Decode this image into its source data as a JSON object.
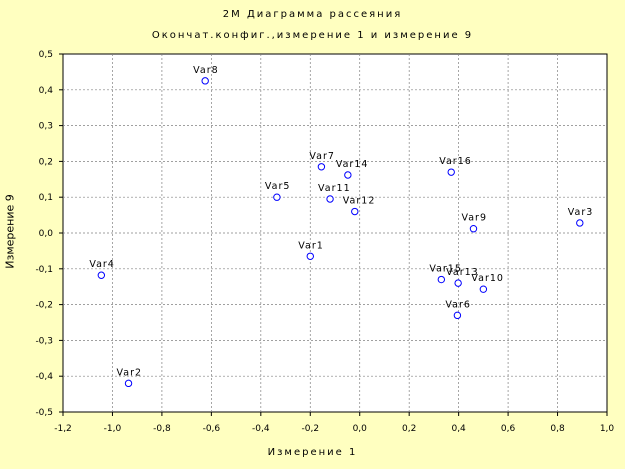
{
  "chart_data": {
    "type": "scatter",
    "title": "2М Диаграмма рассеяния",
    "subtitle": "Окончат.конфиг.,измерение  1 и измерение  9",
    "xlabel": "Измерение 1",
    "ylabel": "Измерение 9",
    "xlim": [
      -1.2,
      1.0
    ],
    "ylim": [
      -0.5,
      0.5
    ],
    "xticks": [
      "-1,2",
      "-1,0",
      "-0,8",
      "-0,6",
      "-0,4",
      "-0,2",
      "0,0",
      "0,2",
      "0,4",
      "0,6",
      "0,8",
      "1,0"
    ],
    "yticks": [
      "0,5",
      "0,4",
      "0,3",
      "0,2",
      "0,1",
      "0,0",
      "-0,1",
      "-0,2",
      "-0,3",
      "-0,4",
      "-0,5"
    ],
    "grid": true,
    "colors": {
      "background": "#ffffc0",
      "marker": "#0000ff",
      "grid": "#808080"
    },
    "points": [
      {
        "label": "Var1",
        "x": -0.2,
        "y": -0.065
      },
      {
        "label": "Var2",
        "x": -0.935,
        "y": -0.42
      },
      {
        "label": "Var3",
        "x": 0.89,
        "y": 0.028
      },
      {
        "label": "Var4",
        "x": -1.045,
        "y": -0.118
      },
      {
        "label": "Var5",
        "x": -0.335,
        "y": 0.1
      },
      {
        "label": "Var6",
        "x": 0.395,
        "y": -0.23
      },
      {
        "label": "Var7",
        "x": -0.155,
        "y": 0.185
      },
      {
        "label": "Var8",
        "x": -0.625,
        "y": 0.425
      },
      {
        "label": "Var9",
        "x": 0.46,
        "y": 0.012
      },
      {
        "label": "Var10",
        "x": 0.5,
        "y": -0.157
      },
      {
        "label": "Var11",
        "x": -0.12,
        "y": 0.095
      },
      {
        "label": "Var12",
        "x": -0.02,
        "y": 0.06
      },
      {
        "label": "Var13",
        "x": 0.398,
        "y": -0.14
      },
      {
        "label": "Var14",
        "x": -0.048,
        "y": 0.162
      },
      {
        "label": "Var15",
        "x": 0.33,
        "y": -0.13
      },
      {
        "label": "Var16",
        "x": 0.37,
        "y": 0.17
      }
    ]
  }
}
